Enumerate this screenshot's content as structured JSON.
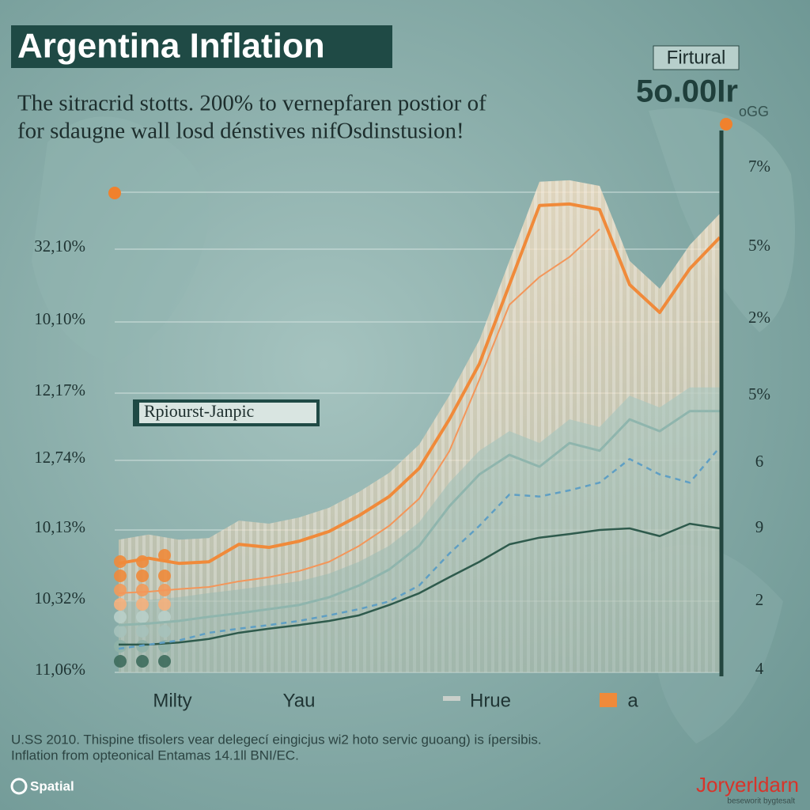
{
  "chart_data": {
    "type": "line",
    "title": "Argentina Inflation",
    "subtitle": [
      "The sitracrid stotts. 200% to vernepfaren postior of",
      "for sdaugne wall losd dénstives nifOsdinstusion!"
    ],
    "corner_label": "Firtural",
    "corner_value": "5o.00Ir",
    "corner_note": "oGG",
    "annotation": "Rpiourst-Janpic",
    "y_labels": [
      "32,10%",
      "10,10%",
      "12,17%",
      "12,74%",
      "10,13%",
      "10,32%",
      "11,06%"
    ],
    "y2_labels": [
      "7%",
      "5%",
      "2%",
      "5%",
      "6",
      "9",
      "2",
      "4"
    ],
    "x": [
      0,
      5,
      10,
      15,
      20,
      25,
      30,
      35,
      40,
      45,
      50,
      55,
      60,
      65,
      70,
      75,
      80,
      85,
      90,
      95,
      100
    ],
    "xlim": [
      0,
      100
    ],
    "ylim": [
      0,
      100
    ],
    "grid": true,
    "series": [
      {
        "color": "#f08a3a",
        "width": 4,
        "values": [
          21.2,
          22.2,
          21.2,
          21.5,
          24.9,
          24.3,
          25.5,
          27.4,
          30.5,
          34.2,
          39.7,
          49.2,
          60,
          75.4,
          90.8,
          91.1,
          90,
          75.4,
          70,
          78.5,
          84.6
        ]
      },
      {
        "color": "#f3965a",
        "width": 2,
        "values": [
          15.4,
          15.7,
          16.2,
          16.6,
          17.7,
          18.5,
          19.7,
          21.5,
          24.6,
          28.5,
          33.8,
          43,
          56.9,
          71.5,
          76.9,
          80.8,
          86.2,
          null,
          null,
          null,
          null
        ]
      },
      {
        "color": "#8fb5ad",
        "width": 3,
        "values": [
          9.2,
          9.5,
          10,
          10.8,
          11.5,
          12.3,
          13.1,
          14.6,
          16.9,
          20,
          24.6,
          32.3,
          38.5,
          42.3,
          40,
          44.6,
          43.1,
          49.2,
          46.9,
          50.8,
          50.8
        ]
      },
      {
        "color": "#5f9fc4",
        "width": 2.5,
        "dash": true,
        "values": [
          4.6,
          5.4,
          6.2,
          7.7,
          8.5,
          9.2,
          10,
          11.1,
          12.3,
          13.8,
          16.9,
          23.1,
          28.5,
          34.6,
          34.2,
          35.4,
          36.9,
          41.5,
          38.5,
          36.9,
          43.8
        ]
      },
      {
        "color": "#2e5a4c",
        "width": 2.5,
        "values": [
          5.4,
          5.4,
          5.8,
          6.5,
          7.7,
          8.5,
          9.2,
          10,
          11.1,
          13.1,
          15.4,
          18.5,
          21.5,
          24.9,
          26.2,
          26.9,
          27.7,
          28,
          26.5,
          28.9,
          28
        ]
      }
    ],
    "legend": [
      {
        "label": "Milty"
      },
      {
        "label": "Yau"
      },
      {
        "label": "Hrue",
        "color": "#c9cfca"
      },
      {
        "label": "a",
        "color": "#f08a3a"
      }
    ],
    "footnotes": [
      "U.SS 2010. Thispine tfisolers vear delegecí eingicjus wi2 hoto servic guoang) is ípersibis.",
      "Inflation from opteonical Entamas 14.1ll BNI/EC."
    ],
    "logo_left": "Spatial",
    "logo_right": "Joryerldarn",
    "logo_right_sub": "beseworit bygtesalt"
  }
}
